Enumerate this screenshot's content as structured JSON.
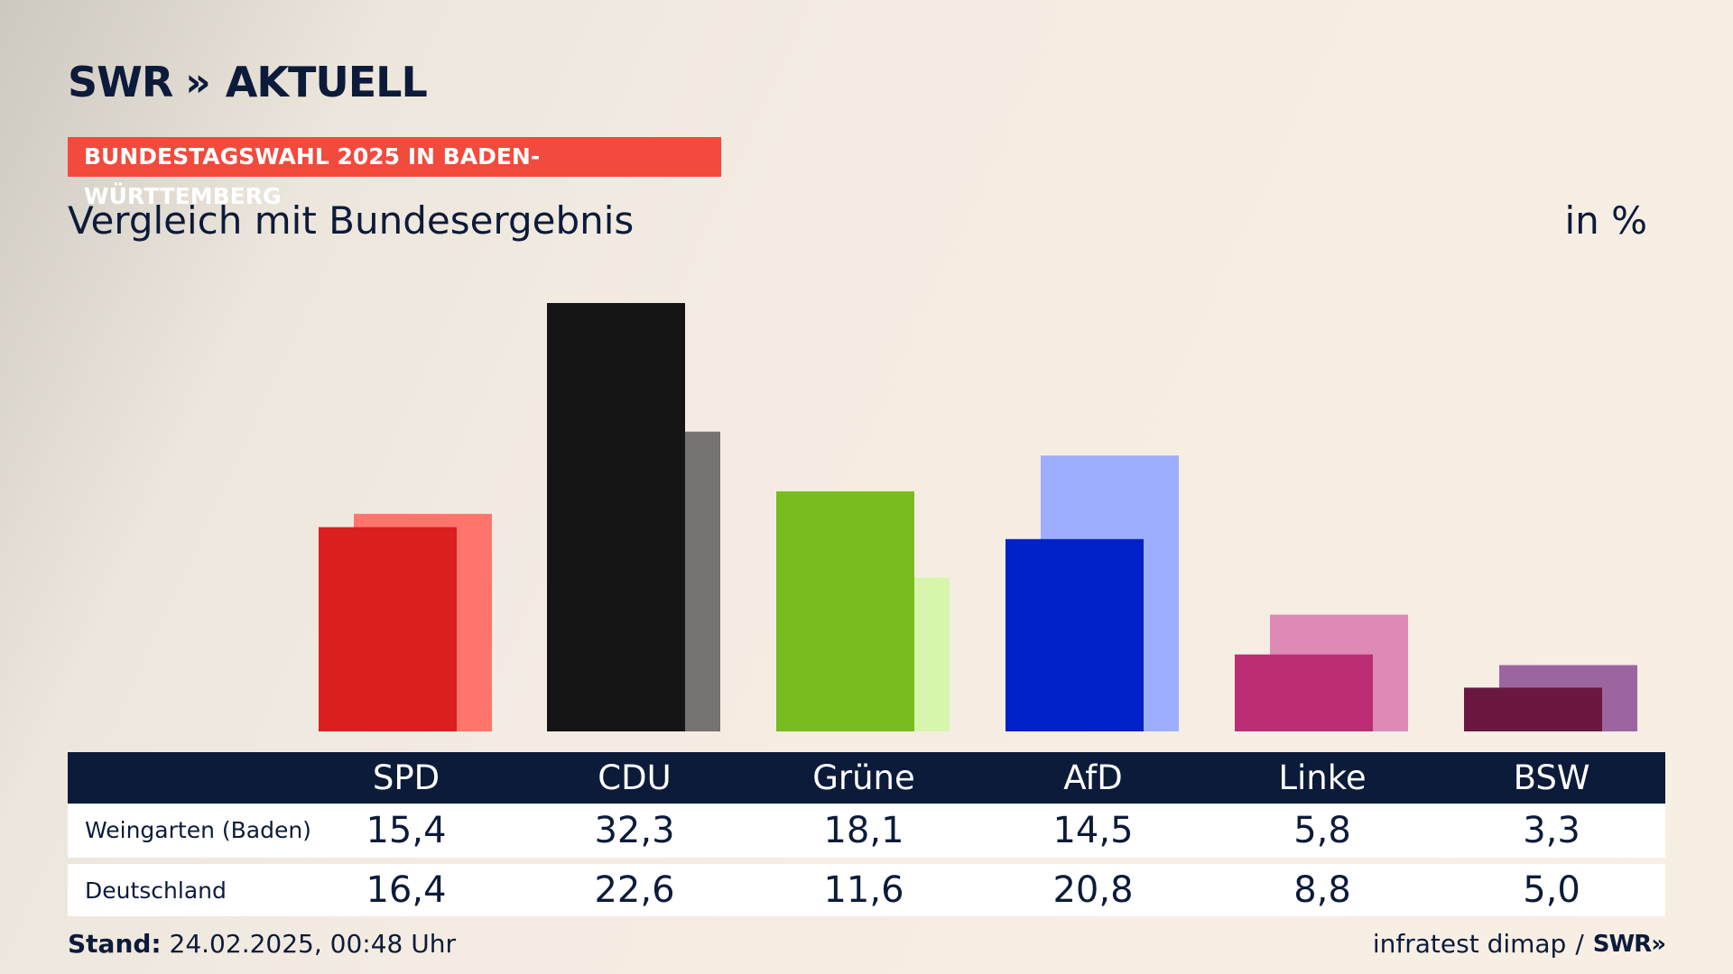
{
  "brand": {
    "logo_text": "SWR",
    "logo_chevrons": "»",
    "logo_suffix": "AKTUELL"
  },
  "banner": "BUNDESTAGSWAHL 2025 IN BADEN-WÜRTTEMBERG",
  "subtitle": "Vergleich mit Bundesergebnis",
  "unit": "in %",
  "rows": {
    "local_label": "Weingarten (Baden)",
    "national_label": "Deutschland"
  },
  "footer": {
    "stand_label": "Stand:",
    "stand_value": "24.02.2025, 00:48 Uhr",
    "source": "infratest dimap",
    "separator": "/",
    "source_logo": "SWR",
    "source_logo_chevrons": "»"
  },
  "chart_data": {
    "type": "bar",
    "categories": [
      "SPD",
      "CDU",
      "Grüne",
      "AfD",
      "Linke",
      "BSW"
    ],
    "series": [
      {
        "name": "Weingarten (Baden)",
        "values": [
          15.4,
          32.3,
          18.1,
          14.5,
          5.8,
          3.3
        ],
        "labels": [
          "15,4",
          "32,3",
          "18,1",
          "14,5",
          "5,8",
          "3,3"
        ]
      },
      {
        "name": "Deutschland",
        "values": [
          16.4,
          22.6,
          11.6,
          20.8,
          8.8,
          5.0
        ],
        "labels": [
          "16,4",
          "22,6",
          "11,6",
          "20,8",
          "8,8",
          "5,0"
        ]
      }
    ],
    "colors_local": [
      "#d91f1f",
      "#141414",
      "#78bc1e",
      "#0020c8",
      "#bc2d74",
      "#6a1840"
    ],
    "colors_national": [
      "#ff756c",
      "#757270",
      "#d7f5ab",
      "#9daeff",
      "#dd8ab6",
      "#9c65a0"
    ],
    "ylim": [
      0,
      32.3
    ],
    "grid": false,
    "legend": "table-below"
  }
}
